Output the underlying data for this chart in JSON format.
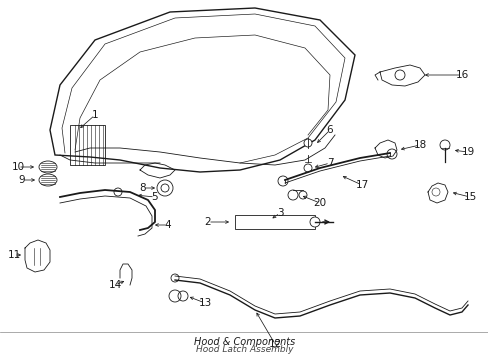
{
  "bg_color": "#ffffff",
  "line_color": "#1a1a1a",
  "title": "Hood & Components",
  "subtitle": "Hood Latch Assembly",
  "figsize": [
    4.89,
    3.6
  ],
  "dpi": 100
}
